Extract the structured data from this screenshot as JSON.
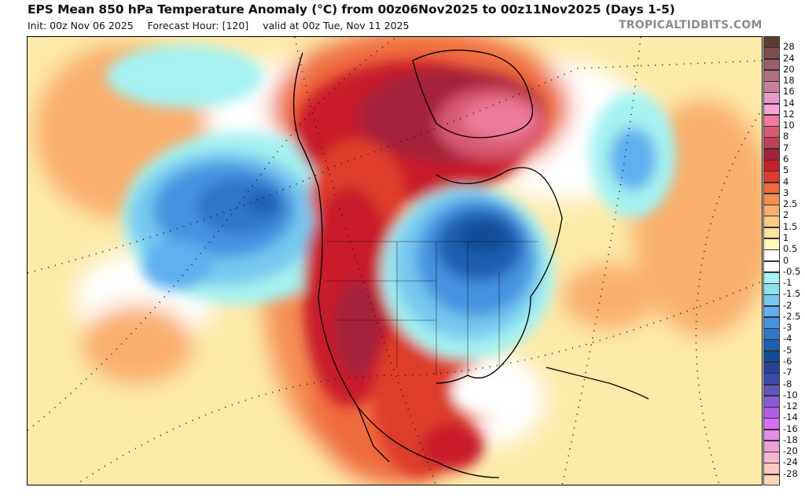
{
  "header": {
    "title": "EPS Mean 850 hPa Temperature Anomaly (°C) from 00z06Nov2025 to 00z11Nov2025 (Days 1-5)",
    "init": "Init: 00z Nov 06 2025",
    "forecast_hour": "Forecast Hour: [120]",
    "valid": "valid at 00z Tue, Nov 11 2025",
    "brand": "TROPICALTIDBITS.COM"
  },
  "map": {
    "variable": "850 hPa Temperature Anomaly",
    "units": "°C",
    "region": "North America",
    "features": [
      {
        "name": "greenland-warm-anomaly",
        "value": 12
      },
      {
        "name": "canadian-arctic-warm-anomaly",
        "value": 7
      },
      {
        "name": "western-us-warm-anomaly",
        "value": 6
      },
      {
        "name": "mexico-warm-anomaly",
        "value": 4
      },
      {
        "name": "great-lakes-cold-anomaly",
        "value": -6
      },
      {
        "name": "northeast-pacific-cold-anomaly",
        "value": -4
      },
      {
        "name": "north-atlantic-cold-anomaly",
        "value": -2
      },
      {
        "name": "central-pacific-warm-anomaly",
        "value": 3
      }
    ]
  },
  "legend": {
    "items": [
      {
        "label": "28",
        "color": "#5e3c2e"
      },
      {
        "label": "24",
        "color": "#7d4f4b"
      },
      {
        "label": "20",
        "color": "#9a5f66"
      },
      {
        "label": "18",
        "color": "#b06e80"
      },
      {
        "label": "16",
        "color": "#c9809c"
      },
      {
        "label": "14",
        "color": "#e69bc4"
      },
      {
        "label": "12",
        "color": "#f9a2d6"
      },
      {
        "label": "10",
        "color": "#ee7b9d"
      },
      {
        "label": "8",
        "color": "#d85a72"
      },
      {
        "label": "7",
        "color": "#bf3f55"
      },
      {
        "label": "6",
        "color": "#a5203a"
      },
      {
        "label": "5",
        "color": "#c81e2a"
      },
      {
        "label": "4",
        "color": "#dd3d2c"
      },
      {
        "label": "3",
        "color": "#ef6a3c"
      },
      {
        "label": "2.5",
        "color": "#f58e53"
      },
      {
        "label": "2",
        "color": "#f9ae6c"
      },
      {
        "label": "1.5",
        "color": "#fcca85"
      },
      {
        "label": "1",
        "color": "#fde29c"
      },
      {
        "label": "0.5",
        "color": "#fff6bd"
      },
      {
        "label": "0",
        "color": "#ffffff"
      },
      {
        "label": "-0.5",
        "color": "#ffffff"
      },
      {
        "label": "-1",
        "color": "#a5f2f1"
      },
      {
        "label": "-1.5",
        "color": "#8ee0ef"
      },
      {
        "label": "-2",
        "color": "#76c8ee"
      },
      {
        "label": "-2.5",
        "color": "#5eb0f0"
      },
      {
        "label": "-3",
        "color": "#4593e0"
      },
      {
        "label": "-4",
        "color": "#2f76c8"
      },
      {
        "label": "-5",
        "color": "#1f5eb0"
      },
      {
        "label": "-6",
        "color": "#144b98"
      },
      {
        "label": "-7",
        "color": "#26449a"
      },
      {
        "label": "-8",
        "color": "#3e4aa8"
      },
      {
        "label": "-10",
        "color": "#6055c0"
      },
      {
        "label": "-12",
        "color": "#8a5ad8"
      },
      {
        "label": "-14",
        "color": "#b25ae8"
      },
      {
        "label": "-16",
        "color": "#d56ef0"
      },
      {
        "label": "-18",
        "color": "#e58ce4"
      },
      {
        "label": "-20",
        "color": "#eba0d6"
      },
      {
        "label": "-24",
        "color": "#f4b6cc"
      },
      {
        "label": "-28",
        "color": "#fbc8c0"
      },
      {
        "label": "",
        "color": "#ffd4b4"
      }
    ]
  }
}
